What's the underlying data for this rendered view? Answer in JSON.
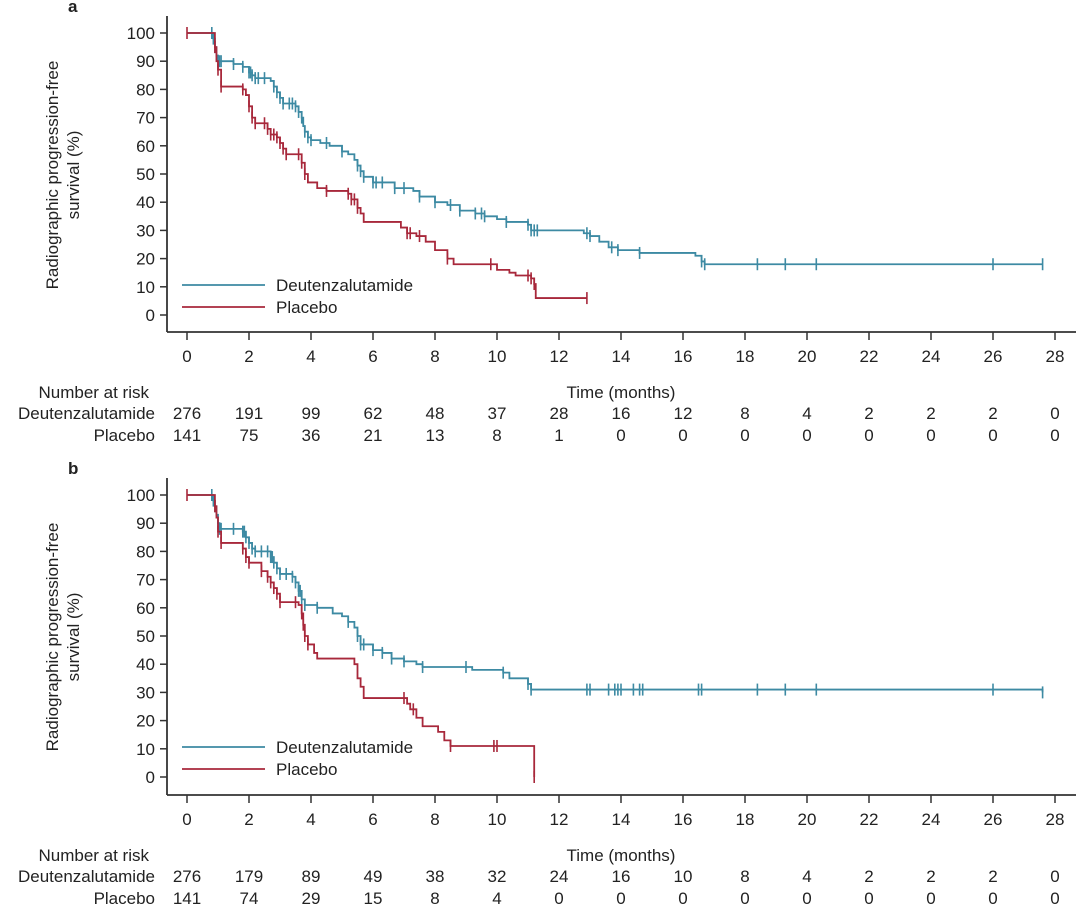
{
  "chart_data": [
    {
      "type": "line",
      "subtype": "kaplan-meier",
      "panel_label": "a",
      "title": "",
      "xlabel": "Time (months)",
      "ylabel_lines": [
        "Radiographic progression-free",
        "survival (%)"
      ],
      "xlim": [
        0,
        28
      ],
      "ylim": [
        0,
        100
      ],
      "x_ticks": [
        0,
        2,
        4,
        6,
        8,
        10,
        12,
        14,
        16,
        18,
        20,
        22,
        24,
        26,
        28
      ],
      "y_ticks": [
        0,
        10,
        20,
        30,
        40,
        50,
        60,
        70,
        80,
        90,
        100
      ],
      "grid": false,
      "legend_position": "bottom-left",
      "series": [
        {
          "name": "Deutenzalutamide",
          "color": "#3d8aa3",
          "steps": [
            [
              0,
              100
            ],
            [
              0.8,
              100
            ],
            [
              0.85,
              98
            ],
            [
              0.9,
              95
            ],
            [
              0.95,
              92
            ],
            [
              1.0,
              90
            ],
            [
              1.5,
              89
            ],
            [
              1.8,
              88
            ],
            [
              2.0,
              86
            ],
            [
              2.1,
              85
            ],
            [
              2.2,
              84
            ],
            [
              2.7,
              83
            ],
            [
              2.8,
              81
            ],
            [
              2.9,
              79
            ],
            [
              3.0,
              77
            ],
            [
              3.1,
              75
            ],
            [
              3.5,
              74
            ],
            [
              3.6,
              72
            ],
            [
              3.7,
              70
            ],
            [
              3.75,
              67
            ],
            [
              3.8,
              65
            ],
            [
              3.9,
              63
            ],
            [
              4.0,
              62
            ],
            [
              4.3,
              61
            ],
            [
              4.6,
              60
            ],
            [
              5.0,
              58
            ],
            [
              5.2,
              57
            ],
            [
              5.4,
              55
            ],
            [
              5.5,
              53
            ],
            [
              5.6,
              51
            ],
            [
              5.7,
              49
            ],
            [
              6.0,
              47
            ],
            [
              6.7,
              45
            ],
            [
              7.3,
              44
            ],
            [
              7.5,
              42
            ],
            [
              8.0,
              40
            ],
            [
              8.4,
              39
            ],
            [
              8.8,
              37
            ],
            [
              9.3,
              36
            ],
            [
              9.6,
              35
            ],
            [
              10.0,
              34
            ],
            [
              10.3,
              33
            ],
            [
              11.0,
              32
            ],
            [
              11.1,
              30
            ],
            [
              12.8,
              29
            ],
            [
              13.0,
              28
            ],
            [
              13.3,
              26
            ],
            [
              13.6,
              24
            ],
            [
              13.9,
              23
            ],
            [
              14.6,
              22
            ],
            [
              16.4,
              21
            ],
            [
              16.6,
              19
            ],
            [
              16.7,
              18
            ],
            [
              27.6,
              18
            ]
          ],
          "censor_times": [
            0.8,
            0.85,
            0.9,
            1.0,
            1.05,
            1.1,
            1.5,
            1.8,
            2.0,
            2.05,
            2.1,
            2.2,
            2.3,
            2.5,
            2.8,
            2.9,
            3.0,
            3.1,
            3.3,
            3.4,
            3.5,
            3.6,
            3.7,
            3.8,
            3.9,
            4.0,
            4.5,
            5.0,
            5.5,
            5.6,
            5.7,
            6.0,
            6.1,
            6.3,
            6.7,
            7.0,
            7.5,
            8.0,
            8.5,
            8.8,
            9.3,
            9.5,
            9.6,
            10.3,
            11.0,
            11.1,
            11.2,
            11.3,
            12.9,
            13.0,
            13.7,
            13.9,
            14.6,
            16.6,
            16.7,
            18.4,
            19.3,
            20.3,
            26.0,
            27.6
          ]
        },
        {
          "name": "Placebo",
          "color": "#a8283b",
          "steps": [
            [
              0,
              100
            ],
            [
              0.85,
              100
            ],
            [
              0.9,
              95
            ],
            [
              0.95,
              90
            ],
            [
              1.0,
              87
            ],
            [
              1.1,
              81
            ],
            [
              1.8,
              80
            ],
            [
              1.9,
              78
            ],
            [
              2.0,
              74
            ],
            [
              2.1,
              70
            ],
            [
              2.2,
              68
            ],
            [
              2.6,
              66
            ],
            [
              2.7,
              64
            ],
            [
              2.9,
              63
            ],
            [
              3.0,
              61
            ],
            [
              3.1,
              59
            ],
            [
              3.2,
              57
            ],
            [
              3.6,
              57
            ],
            [
              3.7,
              54
            ],
            [
              3.8,
              50
            ],
            [
              3.9,
              47
            ],
            [
              4.2,
              45
            ],
            [
              4.5,
              44
            ],
            [
              5.2,
              43
            ],
            [
              5.3,
              41
            ],
            [
              5.5,
              38
            ],
            [
              5.6,
              36
            ],
            [
              5.7,
              33
            ],
            [
              6.7,
              33
            ],
            [
              6.9,
              31
            ],
            [
              7.1,
              29
            ],
            [
              7.4,
              28
            ],
            [
              7.7,
              26
            ],
            [
              8.0,
              23
            ],
            [
              8.4,
              20
            ],
            [
              8.6,
              18
            ],
            [
              9.8,
              18
            ],
            [
              10.0,
              16
            ],
            [
              10.4,
              15
            ],
            [
              10.6,
              14
            ],
            [
              11.1,
              13
            ],
            [
              11.2,
              11
            ],
            [
              11.25,
              6
            ],
            [
              12.9,
              6
            ]
          ],
          "censor_times": [
            0,
            0.9,
            1.0,
            1.1,
            1.8,
            2.0,
            2.1,
            2.2,
            2.5,
            2.6,
            2.7,
            2.8,
            2.9,
            3.0,
            3.1,
            3.2,
            3.6,
            3.7,
            3.8,
            4.5,
            5.2,
            5.3,
            5.4,
            5.5,
            7.1,
            7.2,
            7.5,
            8.4,
            9.8,
            11.0,
            11.1,
            11.2,
            12.9
          ]
        }
      ],
      "number_at_risk": {
        "title": "Number at risk",
        "times": [
          0,
          2,
          4,
          6,
          8,
          10,
          12,
          14,
          16,
          18,
          20,
          22,
          24,
          26,
          28
        ],
        "rows": [
          {
            "label": "Deutenzalutamide",
            "values": [
              "276",
              "191",
              "99",
              "62",
              "48",
              "37",
              "28",
              "16",
              "12",
              "8",
              "4",
              "2",
              "2",
              "2",
              "0"
            ]
          },
          {
            "label": "Placebo",
            "values": [
              "141",
              "75",
              "36",
              "21",
              "13",
              "8",
              "1",
              "0",
              "0",
              "0",
              "0",
              "0",
              "0",
              "0",
              "0"
            ]
          }
        ]
      }
    },
    {
      "type": "line",
      "subtype": "kaplan-meier",
      "panel_label": "b",
      "title": "",
      "xlabel": "Time (months)",
      "ylabel_lines": [
        "Radiographic progression-free",
        "survival (%)"
      ],
      "xlim": [
        0,
        28
      ],
      "ylim": [
        0,
        100
      ],
      "x_ticks": [
        0,
        2,
        4,
        6,
        8,
        10,
        12,
        14,
        16,
        18,
        20,
        22,
        24,
        26,
        28
      ],
      "y_ticks": [
        0,
        10,
        20,
        30,
        40,
        50,
        60,
        70,
        80,
        90,
        100
      ],
      "grid": false,
      "legend_position": "bottom-left",
      "series": [
        {
          "name": "Deutenzalutamide",
          "color": "#3d8aa3",
          "steps": [
            [
              0,
              100
            ],
            [
              0.8,
              100
            ],
            [
              0.85,
              98
            ],
            [
              0.9,
              96
            ],
            [
              0.95,
              93
            ],
            [
              1.0,
              90
            ],
            [
              1.05,
              88
            ],
            [
              1.8,
              87
            ],
            [
              1.9,
              85
            ],
            [
              2.0,
              83
            ],
            [
              2.1,
              81
            ],
            [
              2.2,
              80
            ],
            [
              2.6,
              80
            ],
            [
              2.7,
              78
            ],
            [
              2.8,
              76
            ],
            [
              2.9,
              74
            ],
            [
              3.0,
              72
            ],
            [
              3.4,
              71
            ],
            [
              3.5,
              69
            ],
            [
              3.6,
              66
            ],
            [
              3.7,
              63
            ],
            [
              3.8,
              61
            ],
            [
              4.2,
              60
            ],
            [
              4.7,
              58
            ],
            [
              5.0,
              57
            ],
            [
              5.2,
              55
            ],
            [
              5.4,
              53
            ],
            [
              5.5,
              50
            ],
            [
              5.6,
              47
            ],
            [
              6.0,
              45
            ],
            [
              6.3,
              44
            ],
            [
              6.6,
              42
            ],
            [
              7.0,
              41
            ],
            [
              7.4,
              40
            ],
            [
              7.6,
              39
            ],
            [
              9.0,
              39
            ],
            [
              9.2,
              38
            ],
            [
              10.2,
              37
            ],
            [
              10.4,
              35
            ],
            [
              11.0,
              33
            ],
            [
              11.1,
              31
            ],
            [
              27.6,
              30
            ]
          ],
          "censor_times": [
            0.8,
            0.85,
            0.9,
            1.0,
            1.05,
            1.1,
            1.5,
            1.8,
            1.85,
            1.9,
            2.0,
            2.1,
            2.2,
            2.4,
            2.6,
            2.7,
            2.75,
            2.8,
            2.9,
            3.0,
            3.2,
            3.4,
            3.5,
            3.6,
            3.65,
            3.7,
            3.8,
            4.2,
            5.2,
            5.5,
            5.6,
            5.7,
            6.0,
            6.3,
            6.6,
            7.0,
            7.6,
            9.0,
            10.2,
            11.0,
            11.1,
            12.9,
            13.0,
            13.6,
            13.8,
            13.9,
            14.0,
            14.4,
            14.6,
            14.7,
            16.5,
            16.6,
            18.4,
            19.3,
            20.3,
            26.0,
            27.6
          ]
        },
        {
          "name": "Placebo",
          "color": "#a8283b",
          "steps": [
            [
              0,
              100
            ],
            [
              0.85,
              100
            ],
            [
              0.9,
              96
            ],
            [
              0.95,
              92
            ],
            [
              1.0,
              87
            ],
            [
              1.1,
              83
            ],
            [
              1.8,
              81
            ],
            [
              1.9,
              78
            ],
            [
              2.0,
              76
            ],
            [
              2.4,
              73
            ],
            [
              2.6,
              71
            ],
            [
              2.7,
              69
            ],
            [
              2.8,
              67
            ],
            [
              2.9,
              65
            ],
            [
              3.0,
              62
            ],
            [
              3.5,
              62
            ],
            [
              3.6,
              61
            ],
            [
              3.7,
              58
            ],
            [
              3.75,
              54
            ],
            [
              3.8,
              50
            ],
            [
              3.9,
              47
            ],
            [
              4.1,
              44
            ],
            [
              4.2,
              42
            ],
            [
              5.3,
              42
            ],
            [
              5.4,
              40
            ],
            [
              5.5,
              35
            ],
            [
              5.6,
              32
            ],
            [
              5.7,
              28
            ],
            [
              7.0,
              28
            ],
            [
              7.1,
              26
            ],
            [
              7.2,
              24
            ],
            [
              7.4,
              21
            ],
            [
              7.6,
              18
            ],
            [
              8.1,
              16
            ],
            [
              8.3,
              13
            ],
            [
              8.5,
              11
            ],
            [
              11.2,
              11
            ],
            [
              11.2,
              0
            ]
          ],
          "censor_times": [
            0,
            0.9,
            1.0,
            1.1,
            1.8,
            1.9,
            2.0,
            2.4,
            2.6,
            2.7,
            2.8,
            2.9,
            3.0,
            3.5,
            3.7,
            3.75,
            3.8,
            3.9,
            7.0,
            7.3,
            8.5,
            9.9,
            10.0,
            11.2
          ]
        }
      ],
      "number_at_risk": {
        "title": "Number at risk",
        "times": [
          0,
          2,
          4,
          6,
          8,
          10,
          12,
          14,
          16,
          18,
          20,
          22,
          24,
          26,
          28
        ],
        "rows": [
          {
            "label": "Deutenzalutamide",
            "values": [
              "276",
              "179",
              "89",
              "49",
              "38",
              "32",
              "24",
              "16",
              "10",
              "8",
              "4",
              "2",
              "2",
              "2",
              "0"
            ]
          },
          {
            "label": "Placebo",
            "values": [
              "141",
              "74",
              "29",
              "15",
              "8",
              "4",
              "0",
              "0",
              "0",
              "0",
              "0",
              "0",
              "0",
              "0",
              "0"
            ]
          }
        ]
      }
    }
  ]
}
